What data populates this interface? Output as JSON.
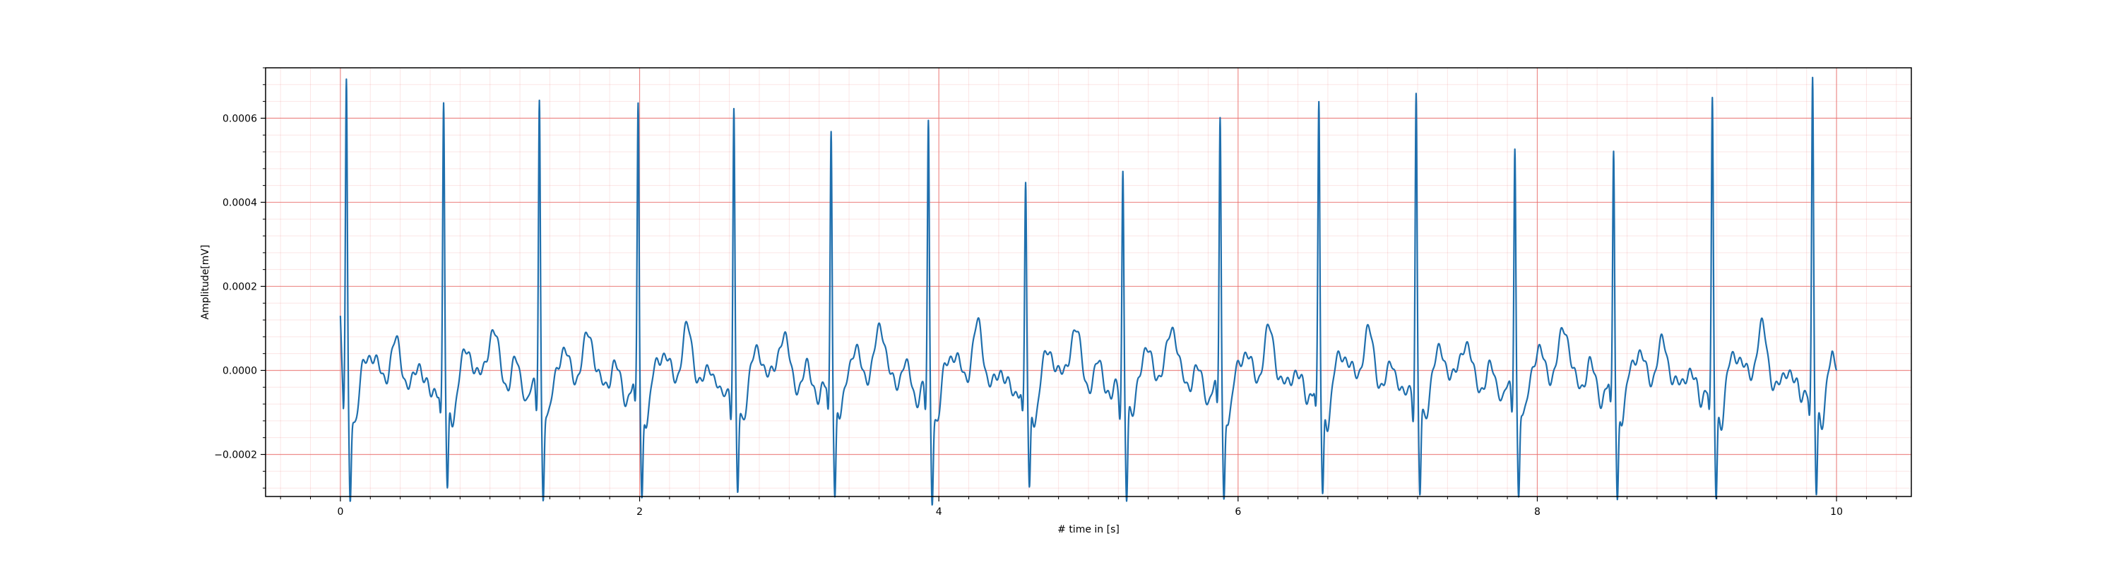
{
  "chart_data": {
    "type": "line",
    "xlabel": "# time in [s]",
    "ylabel": "Amplitude[mV]",
    "xlim": [
      -0.5,
      10.5
    ],
    "ylim": [
      -0.0003,
      0.00072
    ],
    "x_ticks": [
      0,
      2,
      4,
      6,
      8,
      10
    ],
    "x_tick_labels": [
      "0",
      "2",
      "4",
      "6",
      "8",
      "10"
    ],
    "y_ticks": [
      -0.0002,
      0.0,
      0.0002,
      0.0004,
      0.0006
    ],
    "y_tick_labels": [
      "−0.0002",
      "0.0000",
      "0.0002",
      "0.0004",
      "0.0006"
    ],
    "grid": {
      "major": true,
      "minor": true,
      "color": "#e8706e"
    },
    "line_color": "#1f6fad",
    "r_peaks": [
      {
        "t": 0.04,
        "amp": 0.00068
      },
      {
        "t": 0.69,
        "amp": 0.00064
      },
      {
        "t": 1.33,
        "amp": 0.00066
      },
      {
        "t": 1.99,
        "amp": 0.00064
      },
      {
        "t": 2.63,
        "amp": 0.00062
      },
      {
        "t": 3.28,
        "amp": 0.00059
      },
      {
        "t": 3.93,
        "amp": 0.00058
      },
      {
        "t": 4.58,
        "amp": 0.00045
      },
      {
        "t": 5.23,
        "amp": 0.00048
      },
      {
        "t": 5.88,
        "amp": 0.00061
      },
      {
        "t": 6.54,
        "amp": 0.00063
      },
      {
        "t": 7.19,
        "amp": 0.00066
      },
      {
        "t": 7.85,
        "amp": 0.00055
      },
      {
        "t": 8.51,
        "amp": 0.00053
      },
      {
        "t": 9.17,
        "amp": 0.00063
      },
      {
        "t": 9.84,
        "amp": 0.00068
      }
    ],
    "start_value": 0.00013,
    "end_value": 0.0,
    "t_start": 0.0,
    "t_end": 10.0
  }
}
